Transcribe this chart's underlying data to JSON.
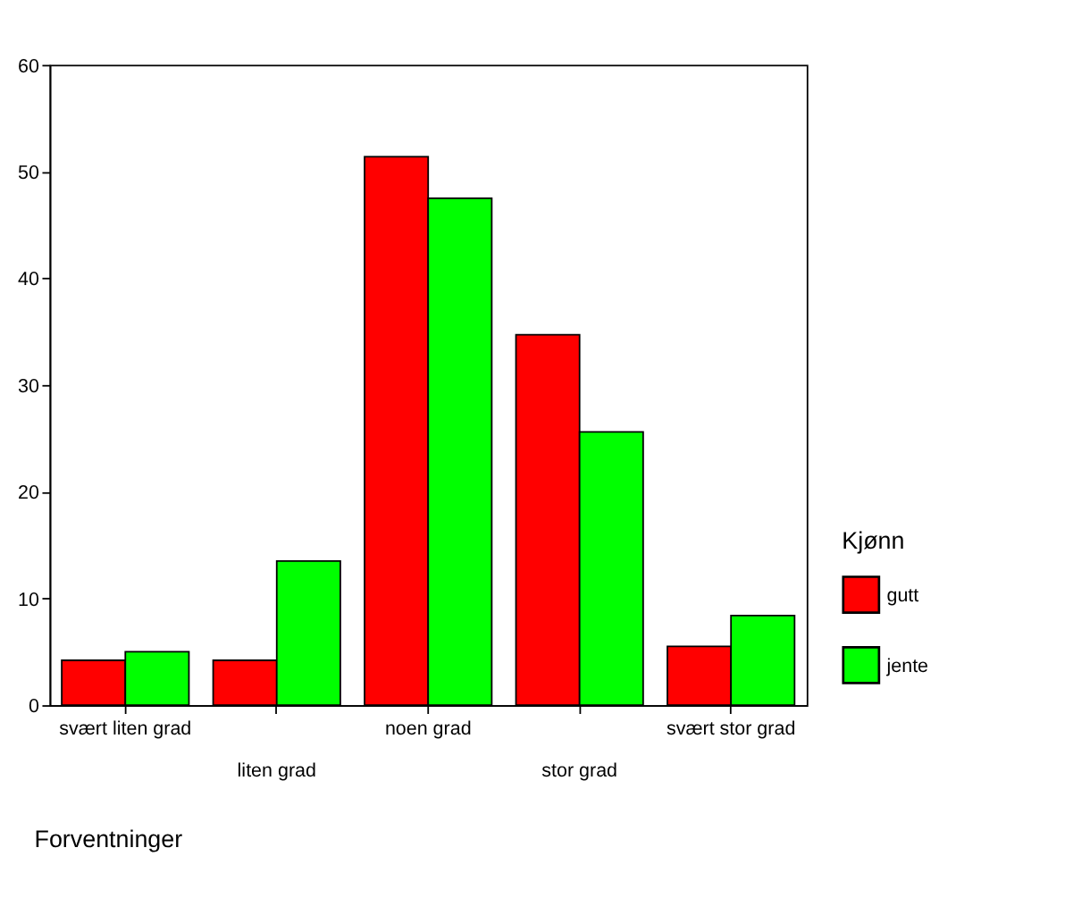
{
  "chart_data": {
    "type": "bar",
    "xlabel": "Forventninger",
    "legend_title": "Kjønn",
    "categories": [
      "svært liten grad",
      "liten grad",
      "noen grad",
      "stor grad",
      "svært stor grad"
    ],
    "series": [
      {
        "name": "gutt",
        "color": "#ff0000",
        "values": [
          4.2,
          4.2,
          51.4,
          34.7,
          5.5
        ]
      },
      {
        "name": "jente",
        "color": "#00ff00",
        "values": [
          5.0,
          13.5,
          47.5,
          25.6,
          8.4
        ]
      }
    ],
    "ylim": [
      0,
      60
    ],
    "yticks": [
      0,
      10,
      20,
      30,
      40,
      50,
      60
    ],
    "grid": false,
    "legend": "right"
  }
}
